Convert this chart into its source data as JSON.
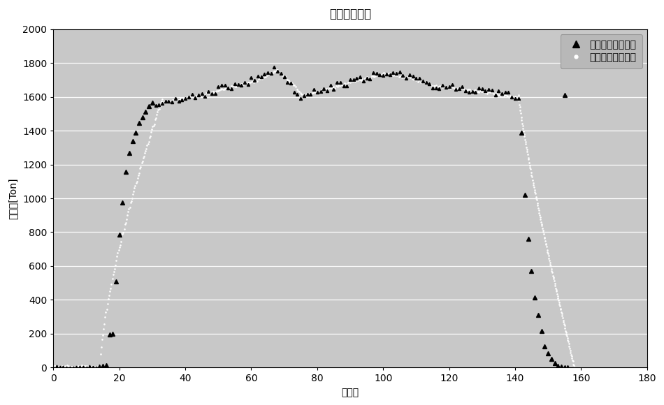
{
  "title": "轧制力分布图",
  "xlabel": "取样点",
  "ylabel": "轧制力[Ton]",
  "xlim": [
    0,
    180
  ],
  "ylim": [
    0,
    2000
  ],
  "xticks": [
    0,
    20,
    40,
    60,
    80,
    100,
    120,
    140,
    160,
    180
  ],
  "yticks": [
    0,
    200,
    400,
    600,
    800,
    1000,
    1200,
    1400,
    1600,
    1800,
    2000
  ],
  "bg_color": "#c8c8c8",
  "legend_label_sensor": "压力传感器检测值",
  "legend_label_virtual": "虚拟轧制力计算值",
  "title_fontsize": 22,
  "axis_label_fontsize": 13,
  "sensor_sparse_rising": [
    [
      14,
      5
    ],
    [
      15,
      8
    ],
    [
      16,
      15
    ],
    [
      17,
      195
    ],
    [
      18,
      200
    ],
    [
      19,
      510
    ],
    [
      20,
      785
    ],
    [
      21,
      975
    ],
    [
      22,
      1155
    ],
    [
      23,
      1270
    ],
    [
      24,
      1340
    ],
    [
      25,
      1390
    ],
    [
      26,
      1445
    ],
    [
      27,
      1480
    ],
    [
      28,
      1510
    ],
    [
      29,
      1545
    ],
    [
      30,
      1565
    ]
  ],
  "sensor_sparse_falling": [
    [
      142,
      1390
    ],
    [
      143,
      1020
    ],
    [
      144,
      760
    ],
    [
      145,
      570
    ],
    [
      146,
      415
    ],
    [
      147,
      310
    ],
    [
      148,
      215
    ],
    [
      149,
      125
    ],
    [
      150,
      85
    ],
    [
      151,
      50
    ],
    [
      152,
      25
    ],
    [
      153,
      10
    ],
    [
      154,
      5
    ],
    [
      155,
      2
    ],
    [
      156,
      0
    ]
  ],
  "sensor_last": [
    155,
    1610
  ]
}
